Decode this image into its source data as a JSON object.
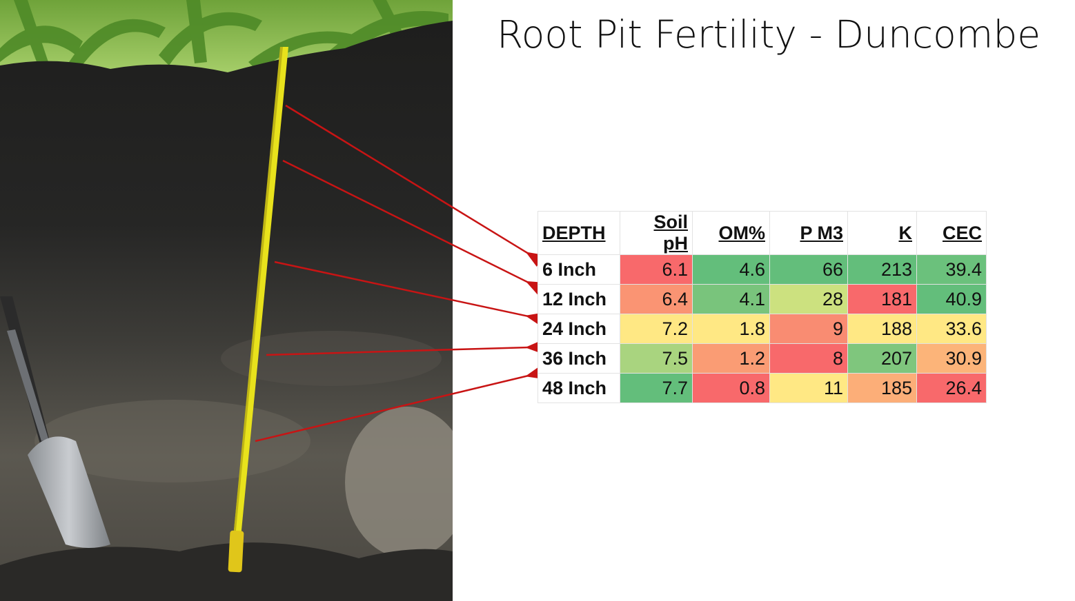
{
  "slide": {
    "title": "Root Pit Fertility - Duncombe"
  },
  "photo": {
    "description_icon": "soil-pit-photo",
    "tape_color": "#e8e21c",
    "arrow_color": "#c81414"
  },
  "table": {
    "headers": [
      "DEPTH",
      "Soil pH",
      "OM%",
      "P M3",
      "K",
      "CEC"
    ],
    "rows": [
      {
        "depth": "6 Inch",
        "cells": [
          {
            "v": "6.1",
            "c": "#f8696b"
          },
          {
            "v": "4.6",
            "c": "#63be7b"
          },
          {
            "v": "66",
            "c": "#63be7b"
          },
          {
            "v": "213",
            "c": "#63be7b"
          },
          {
            "v": "39.4",
            "c": "#6bc17c"
          }
        ]
      },
      {
        "depth": "12 Inch",
        "cells": [
          {
            "v": "6.4",
            "c": "#fa9473"
          },
          {
            "v": "4.1",
            "c": "#79c47c"
          },
          {
            "v": "28",
            "c": "#cce17f"
          },
          {
            "v": "181",
            "c": "#f8696b"
          },
          {
            "v": "40.9",
            "c": "#63be7b"
          }
        ]
      },
      {
        "depth": "24 Inch",
        "cells": [
          {
            "v": "7.2",
            "c": "#ffe884"
          },
          {
            "v": "1.8",
            "c": "#ffe884"
          },
          {
            "v": "9",
            "c": "#f98c72"
          },
          {
            "v": "188",
            "c": "#ffe884"
          },
          {
            "v": "33.6",
            "c": "#ffe884"
          }
        ]
      },
      {
        "depth": "36 Inch",
        "cells": [
          {
            "v": "7.5",
            "c": "#a9d47f"
          },
          {
            "v": "1.2",
            "c": "#fa9c74"
          },
          {
            "v": "8",
            "c": "#f8696b"
          },
          {
            "v": "207",
            "c": "#7fc67d"
          },
          {
            "v": "30.9",
            "c": "#fcb479"
          }
        ]
      },
      {
        "depth": "48 Inch",
        "cells": [
          {
            "v": "7.7",
            "c": "#63be7b"
          },
          {
            "v": "0.8",
            "c": "#f8696b"
          },
          {
            "v": "11",
            "c": "#ffe884"
          },
          {
            "v": "185",
            "c": "#fcae78"
          },
          {
            "v": "26.4",
            "c": "#f8696b"
          }
        ]
      }
    ]
  }
}
